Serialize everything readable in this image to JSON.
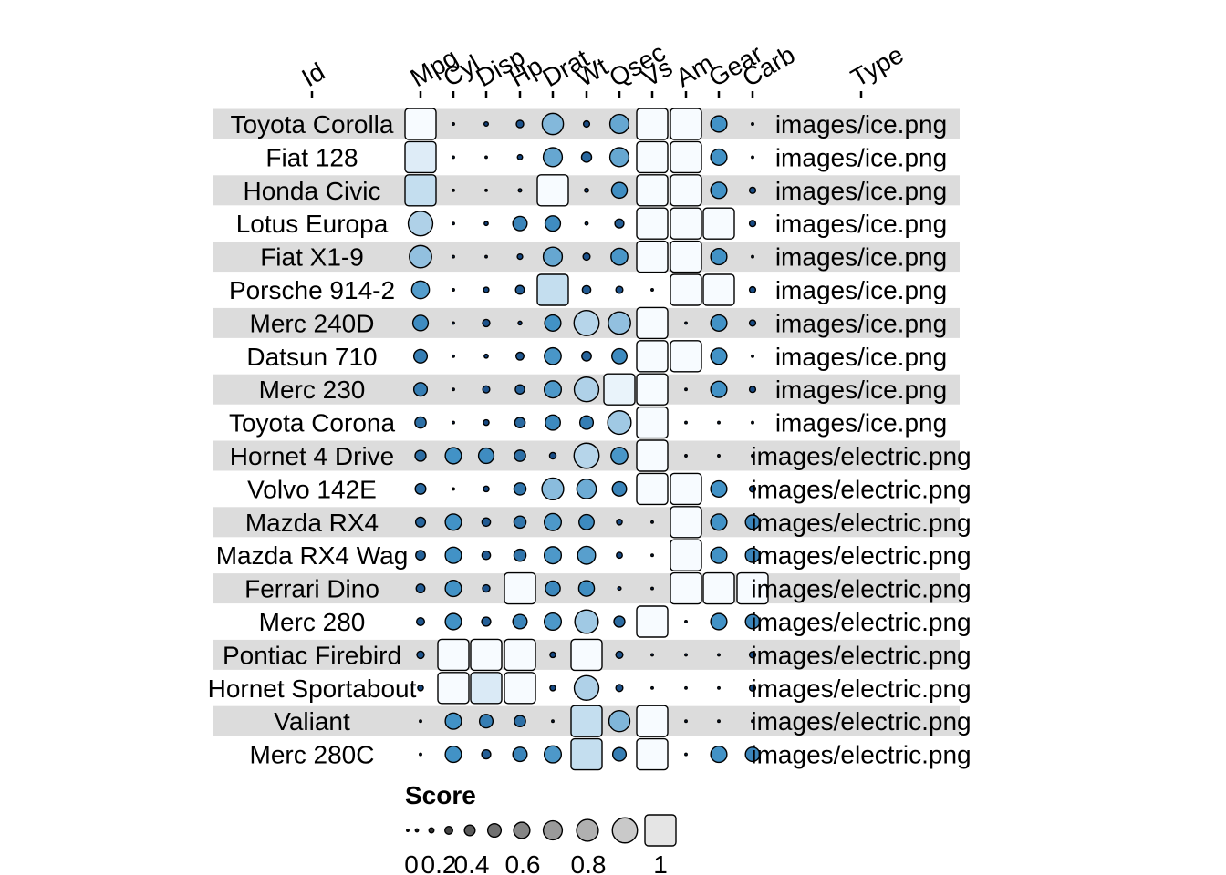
{
  "chart_data": {
    "type": "heatmap",
    "columns": [
      "Id",
      "Mpg",
      "Cyl",
      "Disp",
      "Hp",
      "Drat",
      "Wt",
      "Qsec",
      "Vs",
      "Am",
      "Gear",
      "Carb",
      "Type"
    ],
    "score_columns": [
      "Mpg",
      "Cyl",
      "Disp",
      "Hp",
      "Drat",
      "Wt",
      "Qsec",
      "Vs",
      "Am",
      "Gear",
      "Carb"
    ],
    "rows": [
      {
        "id": "Toyota Corolla",
        "type": "images/ice.png",
        "scores": [
          1.0,
          0.0,
          0.07,
          0.18,
          0.68,
          0.14,
          0.6,
          1,
          1,
          0.5,
          0.0
        ]
      },
      {
        "id": "Fiat 128",
        "type": "images/ice.png",
        "scores": [
          0.93,
          0.0,
          0.0,
          0.1,
          0.6,
          0.28,
          0.6,
          1,
          1,
          0.5,
          0.0
        ]
      },
      {
        "id": "Honda Civic",
        "type": "images/ice.png",
        "scores": [
          0.86,
          0.0,
          0.0,
          0.04,
          1.0,
          0.06,
          0.48,
          1,
          1,
          0.5,
          0.14
        ]
      },
      {
        "id": "Lotus Europa",
        "type": "images/ice.png",
        "scores": [
          0.8,
          0.0,
          0.06,
          0.43,
          0.47,
          0.03,
          0.24,
          1,
          1,
          1.0,
          0.14
        ]
      },
      {
        "id": "Fiat X1-9",
        "type": "images/ice.png",
        "scores": [
          0.72,
          0.0,
          0.0,
          0.11,
          0.6,
          0.17,
          0.52,
          1,
          1,
          0.5,
          0.0
        ]
      },
      {
        "id": "Porsche 914-2",
        "type": "images/ice.png",
        "scores": [
          0.55,
          0.0,
          0.11,
          0.23,
          0.86,
          0.22,
          0.17,
          0.0,
          1,
          1.0,
          0.14
        ]
      },
      {
        "id": "Merc 240D",
        "type": "images/ice.png",
        "scores": [
          0.47,
          0.0,
          0.18,
          0.05,
          0.5,
          0.82,
          0.72,
          1,
          0.0,
          0.5,
          0.14
        ]
      },
      {
        "id": "Datsun 710",
        "type": "images/ice.png",
        "scores": [
          0.4,
          0.0,
          0.06,
          0.2,
          0.52,
          0.26,
          0.46,
          1,
          1,
          0.5,
          0.0
        ]
      },
      {
        "id": "Merc 230",
        "type": "images/ice.png",
        "scores": [
          0.4,
          0.0,
          0.17,
          0.25,
          0.53,
          0.8,
          0.96,
          1,
          0.0,
          0.5,
          0.14
        ]
      },
      {
        "id": "Toyota Corona",
        "type": "images/ice.png",
        "scores": [
          0.32,
          0.0,
          0.12,
          0.29,
          0.46,
          0.4,
          0.76,
          1,
          0.0,
          0.0,
          0.0
        ]
      },
      {
        "id": "Hornet 4 Drive",
        "type": "images/electric.png",
        "scores": [
          0.31,
          0.5,
          0.47,
          0.32,
          0.15,
          0.82,
          0.52,
          1,
          0.0,
          0.0,
          0.0
        ]
      },
      {
        "id": "Volvo 142E",
        "type": "images/electric.png",
        "scores": [
          0.3,
          0.0,
          0.12,
          0.35,
          0.7,
          0.62,
          0.43,
          1,
          1,
          0.5,
          0.14
        ]
      },
      {
        "id": "Mazda RX4",
        "type": "images/electric.png",
        "scores": [
          0.27,
          0.5,
          0.22,
          0.35,
          0.53,
          0.46,
          0.12,
          0.0,
          1,
          0.5,
          0.43
        ]
      },
      {
        "id": "Mazda RX4 Wag",
        "type": "images/electric.png",
        "scores": [
          0.26,
          0.5,
          0.22,
          0.35,
          0.53,
          0.56,
          0.13,
          0.0,
          1,
          0.5,
          0.43
        ]
      },
      {
        "id": "Ferrari Dino",
        "type": "images/electric.png",
        "scores": [
          0.23,
          0.5,
          0.18,
          1.0,
          0.45,
          0.48,
          0.04,
          0.0,
          1,
          1.0,
          1.0
        ]
      },
      {
        "id": "Merc 280",
        "type": "images/electric.png",
        "scores": [
          0.2,
          0.5,
          0.24,
          0.43,
          0.53,
          0.76,
          0.31,
          1,
          0.0,
          0.5,
          0.43
        ]
      },
      {
        "id": "Pontiac Firebird",
        "type": "images/electric.png",
        "scores": [
          0.18,
          1.0,
          1.0,
          1.0,
          0.12,
          1.0,
          0.17,
          0.0,
          0.0,
          0.0,
          0.14
        ]
      },
      {
        "id": "Hornet Sportabout",
        "type": "images/electric.png",
        "scores": [
          0.12,
          1.0,
          0.92,
          1.0,
          0.12,
          0.8,
          0.17,
          0.0,
          0.0,
          0.0,
          0.14
        ]
      },
      {
        "id": "Valiant",
        "type": "images/electric.png",
        "scores": [
          0.0,
          0.5,
          0.4,
          0.32,
          0.0,
          0.86,
          0.67,
          1,
          0.0,
          0.0,
          0.0
        ]
      },
      {
        "id": "Merc 280C",
        "type": "images/electric.png",
        "scores": [
          0.0,
          0.5,
          0.24,
          0.43,
          0.53,
          0.86,
          0.4,
          1,
          0.0,
          0.5,
          0.43
        ]
      }
    ],
    "legend": {
      "title": "Score",
      "ticks": [
        "0",
        "0.2",
        "0.4",
        "0.6",
        "0.8",
        "1"
      ],
      "tick_values": [
        0,
        0.2,
        0.4,
        0.6,
        0.8,
        1
      ],
      "swatch_values": [
        0.03,
        0.1,
        0.2,
        0.3,
        0.4,
        0.5,
        0.6,
        0.7,
        0.82,
        0.95
      ]
    },
    "score_range": [
      0,
      1
    ],
    "colors": {
      "low": "#08306b",
      "mid": "#4292c6",
      "high": "#f7fbff",
      "stripe": "#dcdcdc",
      "legend_low": "#1a1a1a",
      "legend_high": "#f0f0f0"
    },
    "grid": false,
    "legend_placement": "bottom"
  }
}
